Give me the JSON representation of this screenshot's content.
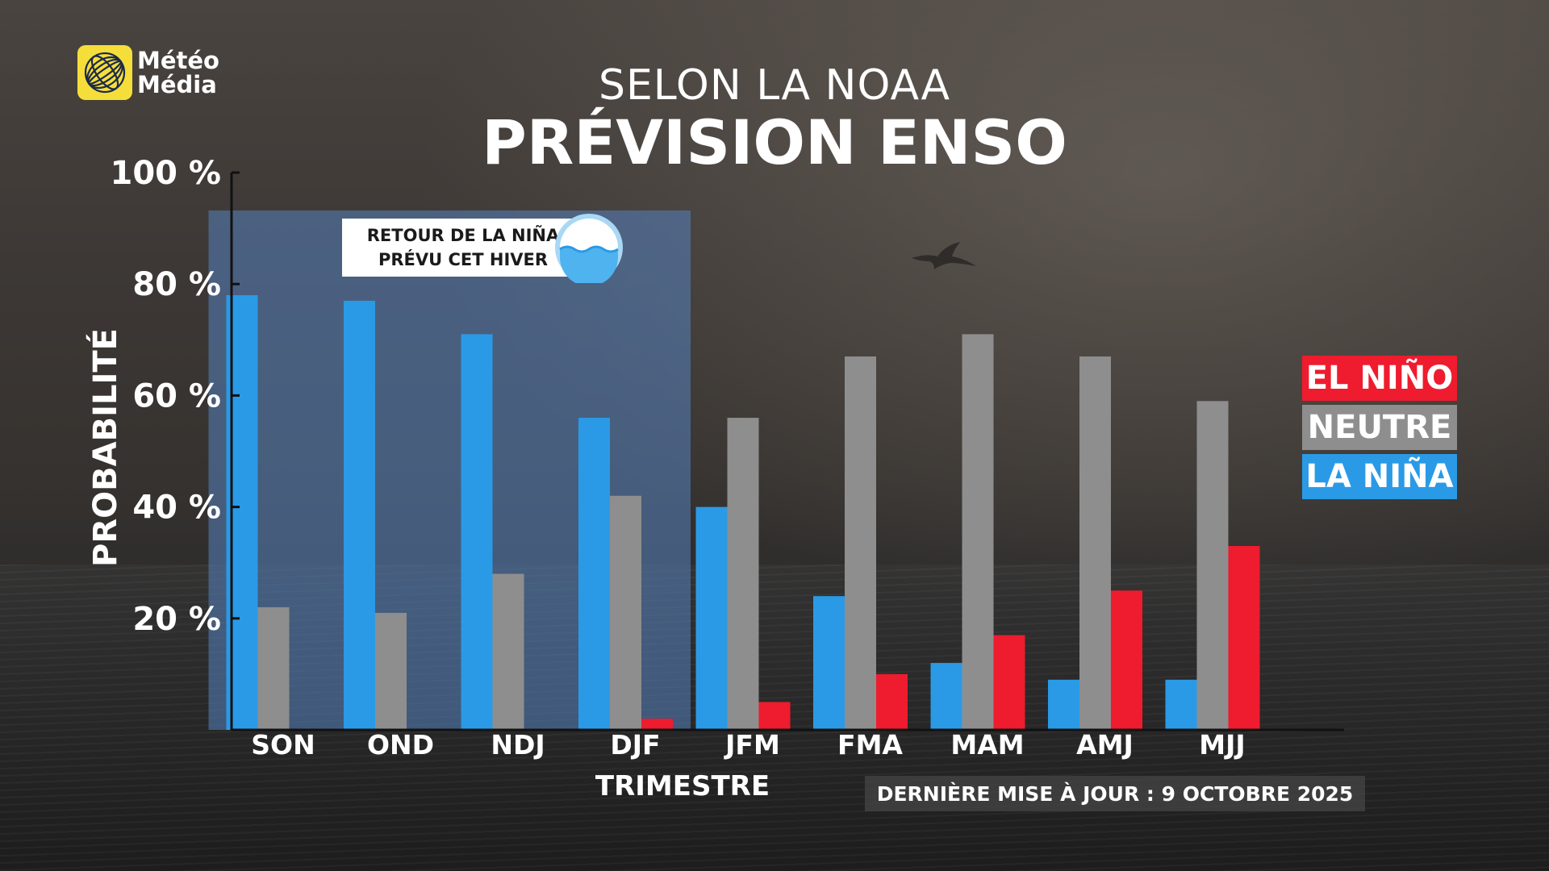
{
  "brand": {
    "line1": "Météo",
    "line2": "Média",
    "logo_icon": "globe-icon",
    "logo_color": "#f5de3a"
  },
  "header": {
    "subtitle": "SELON LA NOAA",
    "title": "PRÉVISION ENSO"
  },
  "callout": {
    "line1": "RETOUR DE LA NIÑA",
    "line2": "PRÉVU CET HIVER",
    "icon": "water-wave-icon",
    "highlight": {
      "from": "SON",
      "to": "DJF"
    }
  },
  "legend": [
    {
      "label": "EL NIÑO",
      "color": "#ee1c2e"
    },
    {
      "label": "NEUTRE",
      "color": "#8e8e8e"
    },
    {
      "label": "LA NIÑA",
      "color": "#2a9ae6"
    }
  ],
  "footnote": "DERNIÈRE MISE À JOUR : 9 OCTOBRE 2025",
  "chart_data": {
    "type": "bar",
    "title": "PRÉVISION ENSO",
    "xlabel": "TRIMESTRE",
    "ylabel": "PROBABILITÉ",
    "ylim": [
      0,
      100
    ],
    "yticks": [
      20,
      40,
      60,
      80,
      100
    ],
    "ytick_labels": [
      "20 %",
      "40 %",
      "60 %",
      "80 %",
      "100 %"
    ],
    "categories": [
      "SON",
      "OND",
      "NDJ",
      "DJF",
      "JFM",
      "FMA",
      "MAM",
      "AMJ",
      "MJJ"
    ],
    "series": [
      {
        "name": "LA NIÑA",
        "color": "#2a9ae6",
        "values": [
          78,
          77,
          71,
          56,
          40,
          24,
          12,
          9,
          9
        ]
      },
      {
        "name": "NEUTRE",
        "color": "#8e8e8e",
        "values": [
          22,
          21,
          28,
          42,
          56,
          67,
          71,
          67,
          59
        ]
      },
      {
        "name": "EL NIÑO",
        "color": "#ee1c2e",
        "values": [
          0,
          0,
          0,
          2,
          5,
          10,
          17,
          25,
          33
        ]
      }
    ],
    "grid": false,
    "legend_position": "right"
  }
}
